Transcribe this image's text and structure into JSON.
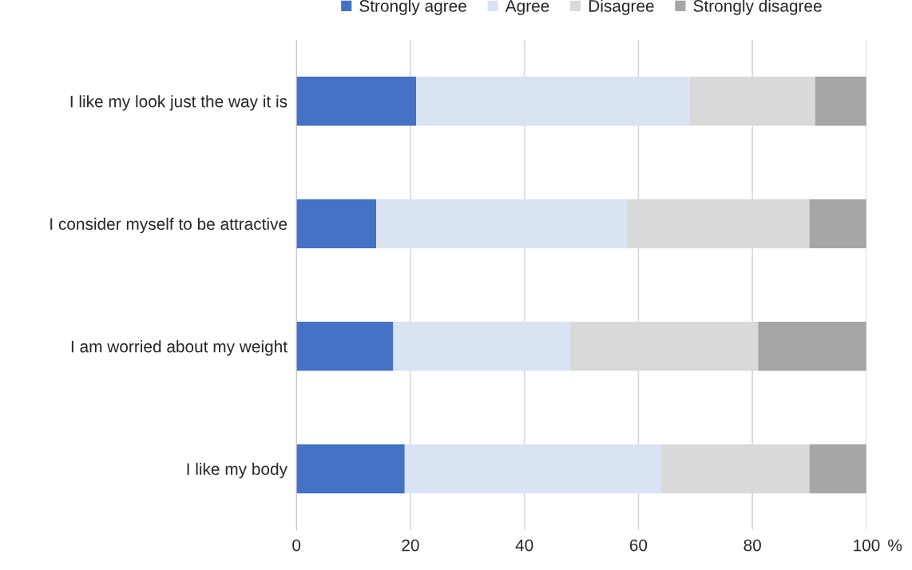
{
  "chart_data": {
    "type": "bar",
    "orientation": "horizontal",
    "stacked": true,
    "xlabel": "%",
    "categories": [
      "I like my look just the way it is",
      "I consider myself to be attractive",
      "I am worried about my weight",
      "I like my body"
    ],
    "series": [
      {
        "name": "Strongly agree",
        "color": "#4472c4",
        "values": [
          21,
          14,
          17,
          19
        ]
      },
      {
        "name": "Agree",
        "color": "#dae3f3",
        "values": [
          48,
          44,
          31,
          45
        ]
      },
      {
        "name": "Disagree",
        "color": "#d9d9d9",
        "values": [
          22,
          32,
          33,
          26
        ]
      },
      {
        "name": "Strongly disagree",
        "color": "#a6a6a6",
        "values": [
          9,
          10,
          19,
          10
        ]
      }
    ],
    "xlim": [
      0,
      100
    ],
    "xticks": [
      0,
      20,
      40,
      60,
      80,
      100
    ],
    "grid": "x",
    "legend": "top"
  }
}
